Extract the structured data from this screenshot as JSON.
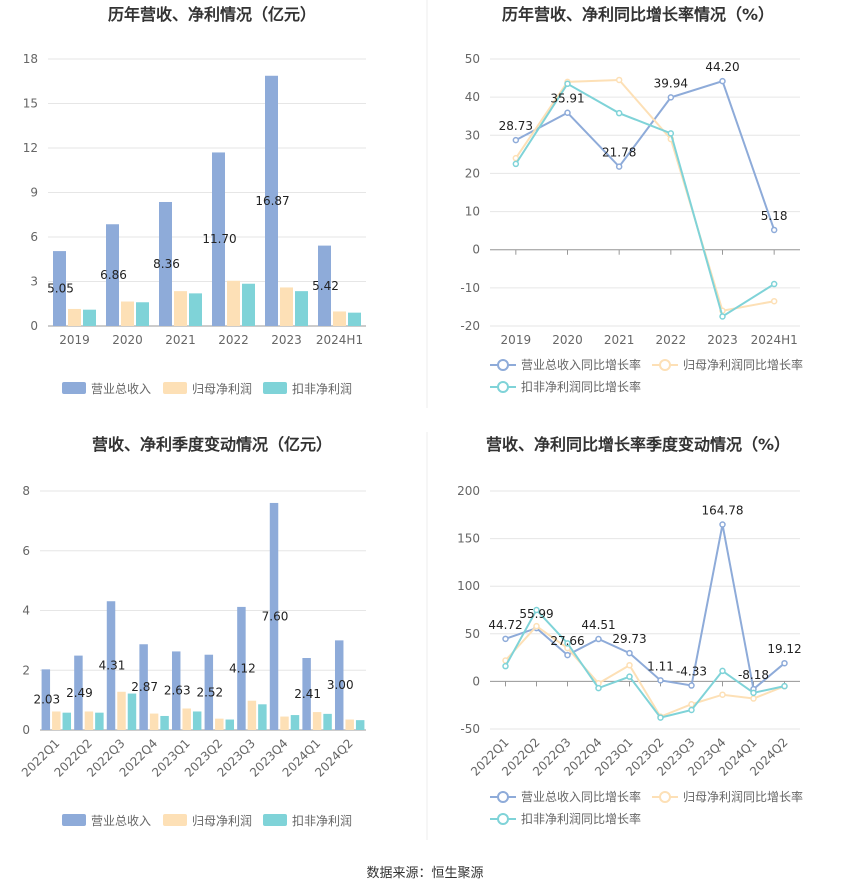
{
  "colors": {
    "revenue": "#8eabd9",
    "net_profit": "#fde0b6",
    "deducted_profit": "#7fd3d8",
    "axis_text": "#666666",
    "grid": "#e6e6e6",
    "title": "#333333"
  },
  "source": "数据来源：恒生聚源",
  "chart_data": [
    {
      "type": "bar",
      "title": "历年营收、净利情况（亿元）",
      "categories": [
        "2019",
        "2020",
        "2021",
        "2022",
        "2023",
        "2024H1"
      ],
      "ylim": [
        0,
        18
      ],
      "yticks": [
        0,
        3,
        6,
        9,
        12,
        15,
        18
      ],
      "series": [
        {
          "name": "营业总收入",
          "values": [
            5.05,
            6.86,
            8.36,
            11.7,
            16.87,
            5.42
          ],
          "labels": [
            "5.05",
            "6.86",
            "8.36",
            "11.70",
            "16.87",
            "5.42"
          ]
        },
        {
          "name": "归母净利润",
          "values": [
            1.15,
            1.65,
            2.35,
            3.05,
            2.6,
            0.98
          ]
        },
        {
          "name": "扣非净利润",
          "values": [
            1.1,
            1.6,
            2.2,
            2.85,
            2.35,
            0.9
          ]
        }
      ],
      "legend": "bottom"
    },
    {
      "type": "line",
      "title": "历年营收、净利同比增长率情况（%）",
      "categories": [
        "2019",
        "2020",
        "2021",
        "2022",
        "2023",
        "2024H1"
      ],
      "ylim": [
        -20,
        50
      ],
      "yticks": [
        -20,
        -10,
        0,
        10,
        20,
        30,
        40,
        50
      ],
      "series": [
        {
          "name": "营业总收入同比增长率",
          "values": [
            28.73,
            35.91,
            21.78,
            39.94,
            44.2,
            5.18
          ],
          "labels": [
            "28.73",
            "35.91",
            "21.78",
            "39.94",
            "44.20",
            "5.18"
          ]
        },
        {
          "name": "归母净利润同比增长率",
          "values": [
            24,
            44,
            44.5,
            29,
            -16,
            -13.5
          ]
        },
        {
          "name": "扣非净利润同比增长率",
          "values": [
            22.5,
            43.5,
            35.8,
            30.5,
            -17.5,
            -9
          ]
        }
      ],
      "legend": "bottom"
    },
    {
      "type": "bar",
      "title": "营收、净利季度变动情况（亿元）",
      "categories": [
        "2022Q1",
        "2022Q2",
        "2022Q3",
        "2022Q4",
        "2023Q1",
        "2023Q2",
        "2023Q3",
        "2023Q4",
        "2024Q1",
        "2024Q2"
      ],
      "ylim": [
        0,
        8
      ],
      "yticks": [
        0,
        2,
        4,
        6,
        8
      ],
      "series": [
        {
          "name": "营业总收入",
          "values": [
            2.03,
            2.49,
            4.31,
            2.87,
            2.63,
            2.52,
            4.12,
            7.6,
            2.41,
            3.0
          ],
          "labels": [
            "2.03",
            "2.49",
            "4.31",
            "2.87",
            "2.63",
            "2.52",
            "4.12",
            "7.60",
            "2.41",
            "3.00"
          ]
        },
        {
          "name": "归母净利润",
          "values": [
            0.62,
            0.62,
            1.28,
            0.55,
            0.72,
            0.38,
            0.98,
            0.45,
            0.6,
            0.35
          ]
        },
        {
          "name": "扣非净利润",
          "values": [
            0.58,
            0.58,
            1.22,
            0.47,
            0.62,
            0.35,
            0.86,
            0.5,
            0.54,
            0.33
          ]
        }
      ],
      "legend": "bottom"
    },
    {
      "type": "line",
      "title": "营收、净利同比增长率季度变动情况（%）",
      "categories": [
        "2022Q1",
        "2022Q2",
        "2022Q3",
        "2022Q4",
        "2023Q1",
        "2023Q2",
        "2023Q3",
        "2023Q4",
        "2024Q1",
        "2024Q2"
      ],
      "ylim": [
        -50,
        200
      ],
      "yticks": [
        -50,
        0,
        50,
        100,
        150,
        200
      ],
      "series": [
        {
          "name": "营业总收入同比增长率",
          "values": [
            44.72,
            55.99,
            27.66,
            44.51,
            29.73,
            1.11,
            -4.33,
            164.78,
            -8.18,
            19.12
          ],
          "labels": [
            "44.72",
            "55.99",
            "27.66",
            "44.51",
            "29.73",
            "1.11",
            "-4.33",
            "164.78",
            "-8.18",
            "19.12"
          ]
        },
        {
          "name": "归母净利润同比增长率",
          "values": [
            22,
            58,
            35,
            -2,
            17,
            -37,
            -24,
            -14,
            -18,
            -5
          ]
        },
        {
          "name": "扣非净利润同比增长率",
          "values": [
            16,
            75,
            40,
            -7,
            5,
            -38,
            -30,
            11,
            -12,
            -5
          ]
        }
      ],
      "legend": "bottom"
    }
  ]
}
